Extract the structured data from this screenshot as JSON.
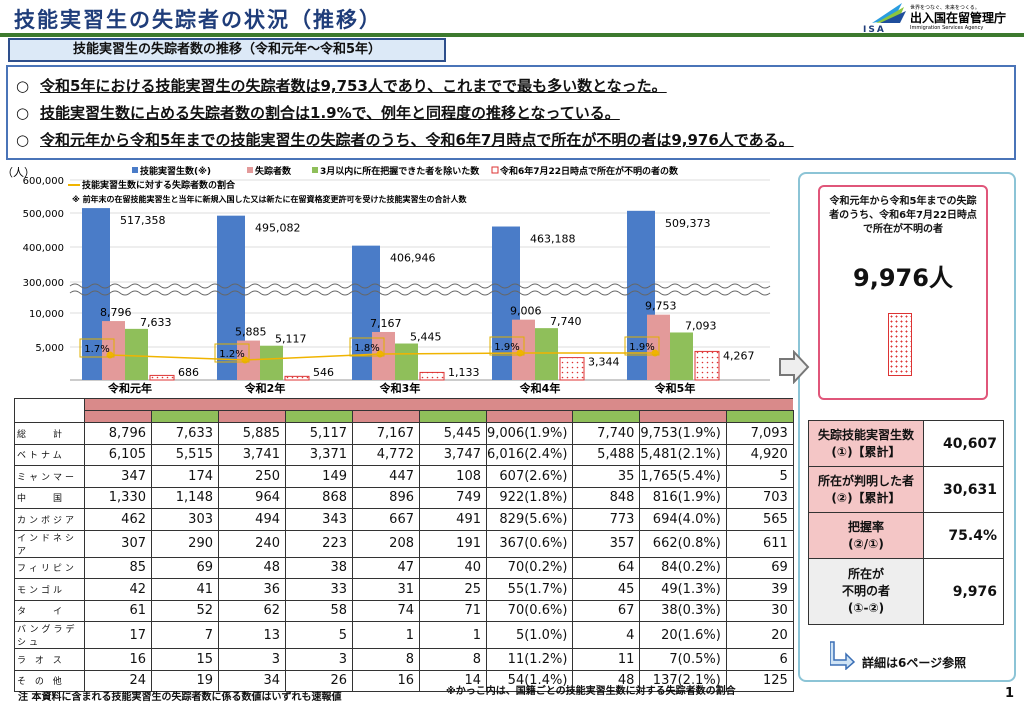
{
  "header": {
    "title": "技能実習生の失踪者の状況（推移）",
    "subtitle": "技能実習生の失踪者数の推移（令和元年～令和5年）",
    "logo_text": "出入国在留管理庁",
    "logo_tagline": "世界をつなぐ、未来をつくる。",
    "logo_en": "Immigration Services Agency",
    "logo_abbr": "ISA"
  },
  "bullets": [
    {
      "mark": "○",
      "text": "令和5年における技能実習生の失踪者数は9,753人であり、これまでで最も多い数となった。"
    },
    {
      "mark": "○",
      "text": "技能実習生数に占める失踪者数の割合は1.9%で、例年と同程度の推移となっている。"
    },
    {
      "mark": "○",
      "text": "令和元年から令和5年までの技能実習生の失踪者のうち、令和6年7月時点で所在が不明の者は9,976人である。"
    }
  ],
  "chart_data": {
    "type": "bar",
    "unit": "（人）",
    "categories": [
      "令和元年",
      "令和2年",
      "令和3年",
      "令和4年",
      "令和5年"
    ],
    "yticks": [
      "600,000",
      "500,000",
      "400,000",
      "300,000",
      "10,000",
      "5,000"
    ],
    "legend": [
      "技能実習生数(※)",
      "失踪者数",
      "3月以内に所在把握できた者を除いた数",
      "令和6年7月22日時点で所在が不明の者の数",
      "技能実習生数に対する失踪者数の割合"
    ],
    "footnote": "※ 前年末の在留技能実習生と当年に新規入国した又は新たに在留資格変更許可を受けた技能実習生の合計人数",
    "series": [
      {
        "name": "技能実習生数",
        "color": "#4a7cc8",
        "values": [
          517358,
          495082,
          406946,
          463188,
          509373
        ],
        "labels": [
          "517,358",
          "495,082",
          "406,946",
          "463,188",
          "509,373"
        ]
      },
      {
        "name": "失踪者数",
        "color": "#e39a9a",
        "values": [
          8796,
          5885,
          7167,
          9006,
          9753
        ],
        "labels": [
          "8,796",
          "5,885",
          "7,167",
          "9,006",
          "9,753"
        ]
      },
      {
        "name": "3月以内に所在把握できた者を除いた数",
        "color": "#8fbf5a",
        "values": [
          7633,
          5117,
          5445,
          7740,
          7093
        ],
        "labels": [
          "7,633",
          "5,117",
          "5,445",
          "7,740",
          "7,093"
        ]
      },
      {
        "name": "所在不明の者の数",
        "color": "#d33",
        "values": [
          686,
          546,
          1133,
          3344,
          4267
        ],
        "labels": [
          "686",
          "546",
          "1,133",
          "3,344",
          "4,267"
        ]
      },
      {
        "name": "割合",
        "color": "#f0b400",
        "values": [
          1.7,
          1.2,
          1.8,
          1.9,
          1.9
        ],
        "labels": [
          "1.7%",
          "1.2%",
          "1.8%",
          "1.9%",
          "1.9%"
        ]
      }
    ]
  },
  "table": {
    "rows": [
      {
        "label": "総　　計",
        "cells": [
          "8,796",
          "7,633",
          "5,885",
          "5,117",
          "7,167",
          "5,445",
          "9,006(1.9%)",
          "7,740",
          "9,753(1.9%)",
          "7,093"
        ]
      },
      {
        "label": "ベトナム",
        "cells": [
          "6,105",
          "5,515",
          "3,741",
          "3,371",
          "4,772",
          "3,747",
          "6,016(2.4%)",
          "5,488",
          "5,481(2.1%)",
          "4,920"
        ]
      },
      {
        "label": "ミャンマー",
        "cells": [
          "347",
          "174",
          "250",
          "149",
          "447",
          "108",
          "607(2.6%)",
          "35",
          "1,765(5.4%)",
          "5"
        ]
      },
      {
        "label": "中　　国",
        "cells": [
          "1,330",
          "1,148",
          "964",
          "868",
          "896",
          "749",
          "922(1.8%)",
          "848",
          "816(1.9%)",
          "703"
        ]
      },
      {
        "label": "カンボジア",
        "cells": [
          "462",
          "303",
          "494",
          "343",
          "667",
          "491",
          "829(5.6%)",
          "773",
          "694(4.0%)",
          "565"
        ]
      },
      {
        "label": "インドネシア",
        "cells": [
          "307",
          "290",
          "240",
          "223",
          "208",
          "191",
          "367(0.6%)",
          "357",
          "662(0.8%)",
          "611"
        ]
      },
      {
        "label": "フィリピン",
        "cells": [
          "85",
          "69",
          "48",
          "38",
          "47",
          "40",
          "70(0.2%)",
          "64",
          "84(0.2%)",
          "69"
        ]
      },
      {
        "label": "モンゴル",
        "cells": [
          "42",
          "41",
          "36",
          "33",
          "31",
          "25",
          "55(1.7%)",
          "45",
          "49(1.3%)",
          "39"
        ]
      },
      {
        "label": "タ　　イ",
        "cells": [
          "61",
          "52",
          "62",
          "58",
          "74",
          "71",
          "70(0.6%)",
          "67",
          "38(0.3%)",
          "30"
        ]
      },
      {
        "label": "バングラデシュ",
        "cells": [
          "17",
          "7",
          "13",
          "5",
          "1",
          "1",
          "5(1.0%)",
          "4",
          "20(1.6%)",
          "20"
        ]
      },
      {
        "label": "ラ オ ス",
        "cells": [
          "16",
          "15",
          "3",
          "3",
          "8",
          "8",
          "11(1.2%)",
          "11",
          "7(0.5%)",
          "6"
        ]
      },
      {
        "label": "そ の 他",
        "cells": [
          "24",
          "19",
          "34",
          "26",
          "16",
          "14",
          "54(1.4%)",
          "48",
          "137(2.1%)",
          "125"
        ]
      }
    ]
  },
  "right": {
    "desc": "令和元年から令和5年までの失踪者のうち、令和6年7月22日時点で所在が不明の者",
    "value": "9,976人",
    "summary": [
      {
        "k1": "失踪技能実習生数",
        "k2": "(①)【累計】",
        "v": "40,607"
      },
      {
        "k1": "所在が判明した者",
        "k2": "(②)【累計】",
        "v": "30,631"
      },
      {
        "k1": "把握率",
        "k2": "(②/①)",
        "v": "75.4%"
      },
      {
        "k1": "所在が",
        "k2": "不明の者",
        "k3": "(①-②)",
        "v": "9,976"
      }
    ],
    "detail": "詳細は6ページ参照"
  },
  "notes": {
    "left": "注 本資料に含まれる技能実習生の失踪者数に係る数値はいずれも速報値",
    "right": "※かっこ内は、国籍ごとの技能実習生数に対する失踪者数の割合",
    "page": "1"
  }
}
